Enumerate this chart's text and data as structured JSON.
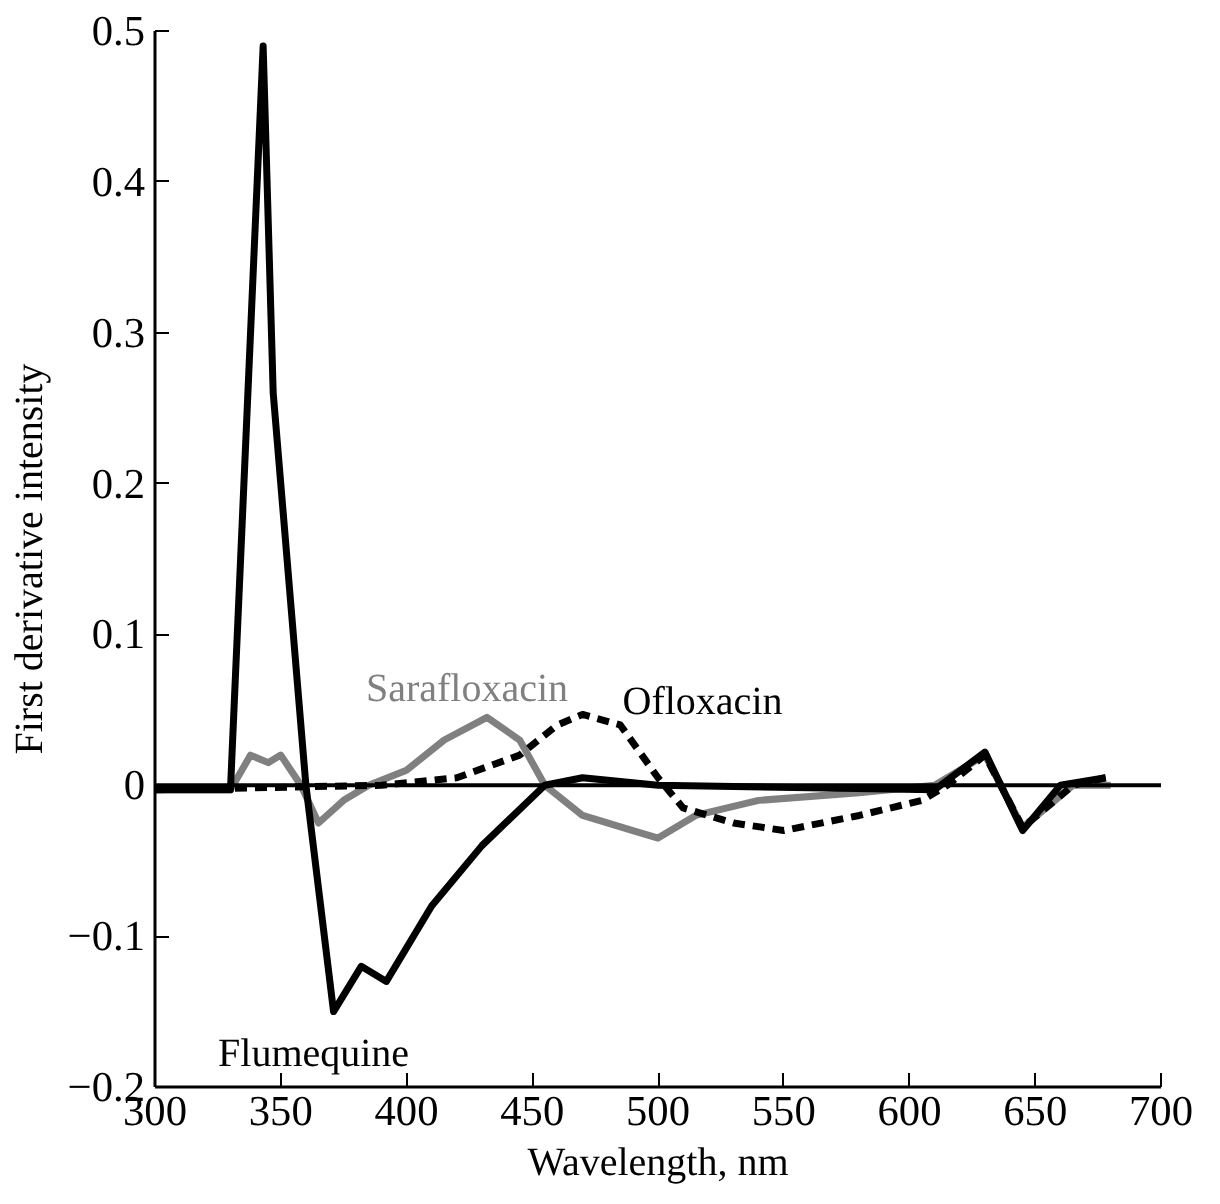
{
  "chart_data": {
    "type": "line",
    "xlabel": "Wavelength, nm",
    "ylabel": "First derivative intensity",
    "xlim": [
      300,
      700
    ],
    "xticks": [
      300,
      350,
      400,
      450,
      500,
      550,
      600,
      650,
      700
    ],
    "ylim": [
      -0.2,
      0.5
    ],
    "yticks": [
      {
        "value": -0.2,
        "label": "−0.2"
      },
      {
        "value": -0.1,
        "label": "−0.1"
      },
      0,
      0.1,
      0.2,
      0.3,
      0.4,
      0.5
    ],
    "grid": false,
    "marker": "none",
    "ref_lines": [
      {
        "axis": "y",
        "value": 0,
        "color": "#000000",
        "line_style": "solid"
      }
    ],
    "series": [
      {
        "name": "Sarafloxacin",
        "color": "#808080",
        "line_style": "solid",
        "x": [
          300,
          330,
          338,
          345,
          350,
          358,
          365,
          375,
          385,
          400,
          415,
          432,
          445,
          455,
          470,
          490,
          500,
          515,
          540,
          580,
          610,
          630,
          645,
          665,
          680
        ],
        "values": [
          -0.003,
          -0.003,
          0.02,
          0.015,
          0.02,
          0,
          -0.025,
          -0.01,
          0,
          0.01,
          0.03,
          0.045,
          0.03,
          0,
          -0.02,
          -0.03,
          -0.035,
          -0.02,
          -0.01,
          -0.005,
          0,
          0.02,
          -0.028,
          0,
          0
        ]
      },
      {
        "name": "Ofloxacin",
        "color": "#000000",
        "line_style": "dashed",
        "x": [
          300,
          390,
          420,
          445,
          460,
          470,
          485,
          500,
          510,
          530,
          550,
          580,
          605,
          615,
          630,
          645,
          665,
          678
        ],
        "values": [
          -0.003,
          0,
          0.005,
          0.02,
          0.04,
          0.047,
          0.04,
          0.005,
          -0.015,
          -0.025,
          -0.03,
          -0.02,
          -0.01,
          0,
          0.02,
          -0.028,
          0,
          0.005
        ]
      },
      {
        "name": "Flumequine",
        "color": "#000000",
        "line_style": "solid",
        "x": [
          300,
          330,
          343,
          347,
          360,
          371,
          382,
          392,
          410,
          430,
          455,
          470,
          500,
          610,
          630,
          645,
          660,
          678
        ],
        "values": [
          -0.003,
          -0.003,
          0.49,
          0.26,
          0,
          -0.15,
          -0.12,
          -0.13,
          -0.08,
          -0.04,
          0,
          0.005,
          0,
          -0.003,
          0.022,
          -0.03,
          0,
          0.005
        ]
      }
    ]
  }
}
